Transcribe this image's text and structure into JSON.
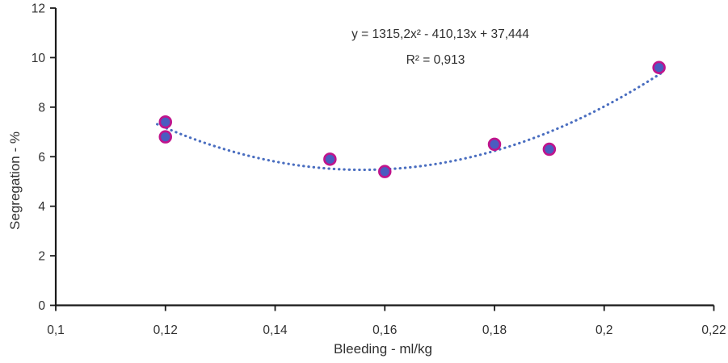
{
  "chart_data": {
    "type": "scatter",
    "title": "",
    "xlabel": "Bleeding - ml/kg",
    "ylabel": "Segregation - %",
    "xlim": [
      0.1,
      0.22
    ],
    "ylim": [
      0,
      12
    ],
    "grid": false,
    "legend": false,
    "x_tick_values": [
      0.1,
      0.12,
      0.14,
      0.16,
      0.18,
      0.2,
      0.22
    ],
    "x_tick_labels": [
      "0,1",
      "0,12",
      "0,14",
      "0,16",
      "0,18",
      "0,2",
      "0,22"
    ],
    "y_tick_values": [
      0,
      2,
      4,
      6,
      8,
      10,
      12
    ],
    "y_tick_labels": [
      "0",
      "2",
      "4",
      "6",
      "8",
      "10",
      "12"
    ],
    "points": [
      {
        "x": 0.12,
        "y": 7.4
      },
      {
        "x": 0.12,
        "y": 6.8
      },
      {
        "x": 0.15,
        "y": 5.9
      },
      {
        "x": 0.16,
        "y": 5.4
      },
      {
        "x": 0.18,
        "y": 6.5
      },
      {
        "x": 0.19,
        "y": 6.3
      },
      {
        "x": 0.21,
        "y": 9.6
      }
    ],
    "trendline": {
      "type": "polynomial",
      "degree": 2,
      "a": 1315.2,
      "b": -410.13,
      "c": 37.444,
      "x_start": 0.1185,
      "x_end": 0.2108,
      "equation": "y = 1315,2x² - 410,13x + 37,444",
      "r_squared": "R² = 0,913"
    },
    "colors": {
      "marker_fill": "#4a5cc0",
      "marker_border": "#c0148c",
      "trendline": "#4a6ec0",
      "axis": "#1a1a1a",
      "text": "#303030"
    }
  }
}
